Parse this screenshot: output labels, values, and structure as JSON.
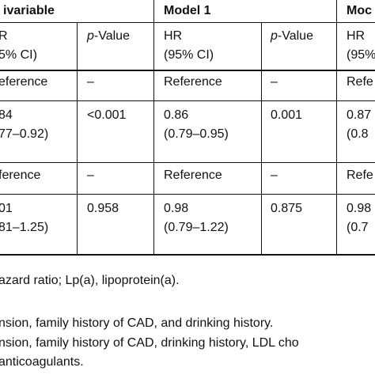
{
  "table": {
    "groups": [
      "ivariable",
      "Model 1",
      "Moc"
    ],
    "columns": [
      [
        "R",
        "5% CI)"
      ],
      [
        "p",
        "-Value"
      ],
      [
        "HR",
        "(95% CI)"
      ],
      [
        "p",
        "-Value"
      ],
      [
        "HR",
        "(95%"
      ]
    ],
    "rows": [
      [
        [
          "eference"
        ],
        [
          "–"
        ],
        [
          "Reference"
        ],
        [
          "–"
        ],
        [
          "Refe"
        ]
      ],
      [
        [
          "84",
          "77–0.92)"
        ],
        [
          "<0.001"
        ],
        [
          "0.86",
          "(0.79–0.95)"
        ],
        [
          "0.001"
        ],
        [
          "0.87",
          "(0.8"
        ]
      ],
      [
        [
          "ference"
        ],
        [
          "–"
        ],
        [
          "Reference"
        ],
        [
          "–"
        ],
        [
          "Refe"
        ]
      ],
      [
        [
          "01",
          "81–1.25)"
        ],
        [
          "0.958"
        ],
        [
          "0.98",
          "(0.79–1.22)"
        ],
        [
          "0.875"
        ],
        [
          "0.98",
          "(0.7"
        ]
      ]
    ]
  },
  "footnotes": [
    "azard ratio; Lp(a), lipoprotein(a).",
    "nsion, family history of CAD, and drinking history.",
    "nsion, family history of CAD, drinking history, LDL cho",
    " anticoagulants."
  ]
}
